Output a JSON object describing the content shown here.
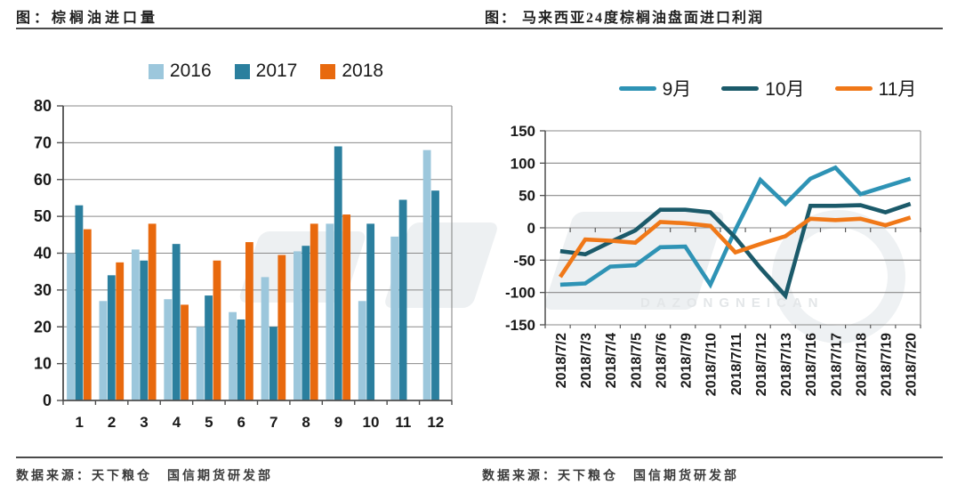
{
  "panels": [
    {
      "title": "图：棕榈油进口量",
      "source": "数据来源：天下粮仓　国信期货研发部"
    },
    {
      "title": "图：  马来西亚24度棕榈油盘面进口利润",
      "source": "数据来源：天下粮仓　国信期货研发部"
    }
  ],
  "watermark_text": "DAZONGNEICAN",
  "chart_data": [
    {
      "type": "bar",
      "title": "棕榈油进口量",
      "categories": [
        "1",
        "2",
        "3",
        "4",
        "5",
        "6",
        "7",
        "8",
        "9",
        "10",
        "11",
        "12"
      ],
      "series": [
        {
          "name": "2016",
          "color": "#9CC7DC",
          "values": [
            40,
            27,
            41,
            27.5,
            20,
            24,
            33.5,
            40.5,
            48,
            27,
            44.5,
            68
          ]
        },
        {
          "name": "2017",
          "color": "#2B7F9E",
          "values": [
            53,
            34,
            38,
            42.5,
            28.5,
            22,
            20,
            42,
            69,
            48,
            54.5,
            57
          ]
        },
        {
          "name": "2018",
          "color": "#E8690E",
          "values": [
            46.5,
            37.5,
            48,
            26,
            38,
            43,
            39.5,
            48,
            50.5,
            null,
            null,
            null
          ]
        }
      ],
      "xlabel": "",
      "ylabel": "",
      "ylim": [
        0,
        80
      ],
      "ytick_step": 10,
      "grid": true,
      "legend_position": "top"
    },
    {
      "type": "line",
      "title": "马来西亚24度棕榈油盘面进口利润",
      "x": [
        "2018/7/2",
        "2018/7/3",
        "2018/7/4",
        "2018/7/5",
        "2018/7/6",
        "2018/7/9",
        "2018/7/10",
        "2018/7/11",
        "2018/7/12",
        "2018/7/13",
        "2018/7/16",
        "2018/7/17",
        "2018/7/18",
        "2018/7/19",
        "2018/7/20"
      ],
      "series": [
        {
          "name": "9月",
          "color": "#2E93B5",
          "values": [
            -88,
            -86,
            -60,
            -58,
            -30,
            -29,
            -88,
            -3,
            74,
            37,
            76,
            93,
            52,
            64,
            76
          ]
        },
        {
          "name": "10月",
          "color": "#1B5A6A",
          "values": [
            -36,
            -41,
            -22,
            -4,
            28,
            28,
            24,
            -15,
            -62,
            -105,
            34,
            34,
            35,
            24,
            37
          ]
        },
        {
          "name": "11月",
          "color": "#F07818",
          "values": [
            -76,
            -18,
            -20,
            -23,
            9,
            7,
            3,
            -38,
            -25,
            -13,
            14,
            12,
            14,
            4,
            16
          ]
        }
      ],
      "xlabel": "",
      "ylabel": "",
      "ylim": [
        -150,
        150
      ],
      "ytick_step": 50,
      "grid": true,
      "legend_position": "top"
    }
  ]
}
